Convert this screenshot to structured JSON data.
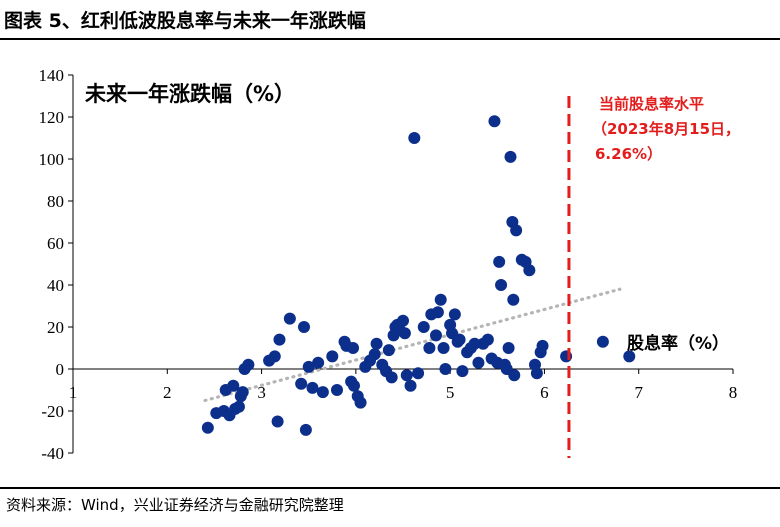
{
  "header": {
    "title": "图表 5、红利低波股息率与未来一年涨跌幅"
  },
  "footer": {
    "source": "资料来源：Wind，兴业证券经济与金融研究院整理"
  },
  "chart_data": {
    "type": "scatter",
    "ylabel": "未来一年涨跌幅（%）",
    "xlabel": "股息率（%）",
    "xlim": [
      1,
      8
    ],
    "ylim": [
      -40,
      140
    ],
    "x_ticks": [
      "1",
      "2",
      "3",
      "4",
      "5",
      "6",
      "7",
      "8"
    ],
    "y_ticks": [
      "-40",
      "-20",
      "0",
      "20",
      "40",
      "60",
      "80",
      "100",
      "120",
      "140"
    ],
    "grid": false,
    "point_color": "#0d2f8c",
    "trendline": {
      "style": "dotted",
      "color": "#b5b5b5",
      "x": [
        2.4,
        6.8
      ],
      "y": [
        -15,
        38
      ]
    },
    "reference_line": {
      "x": 6.26,
      "color": "#e31d1c",
      "style": "dashed",
      "label_lines": [
        "当前股息率水平",
        "（2023年8月15日，",
        "6.26%）"
      ]
    },
    "points": [
      [
        2.43,
        -28
      ],
      [
        2.52,
        -21
      ],
      [
        2.6,
        -20
      ],
      [
        2.62,
        -10
      ],
      [
        2.66,
        -22
      ],
      [
        2.7,
        -8
      ],
      [
        2.72,
        -19
      ],
      [
        2.76,
        -18
      ],
      [
        2.78,
        -13
      ],
      [
        2.8,
        -11
      ],
      [
        2.82,
        0
      ],
      [
        2.86,
        2
      ],
      [
        3.08,
        4
      ],
      [
        3.14,
        6
      ],
      [
        3.19,
        14
      ],
      [
        3.17,
        -25
      ],
      [
        3.3,
        24
      ],
      [
        3.42,
        -7
      ],
      [
        3.45,
        20
      ],
      [
        3.47,
        -29
      ],
      [
        3.5,
        1
      ],
      [
        3.54,
        -9
      ],
      [
        3.6,
        3
      ],
      [
        3.65,
        -11
      ],
      [
        3.75,
        6
      ],
      [
        3.8,
        -10
      ],
      [
        3.88,
        13
      ],
      [
        3.9,
        11
      ],
      [
        3.95,
        -6
      ],
      [
        3.97,
        10
      ],
      [
        3.98,
        -8
      ],
      [
        4.02,
        -13
      ],
      [
        4.05,
        -16
      ],
      [
        4.1,
        1
      ],
      [
        4.15,
        4
      ],
      [
        4.2,
        7
      ],
      [
        4.22,
        12
      ],
      [
        4.28,
        2
      ],
      [
        4.32,
        -1
      ],
      [
        4.35,
        9
      ],
      [
        4.38,
        -4
      ],
      [
        4.4,
        16
      ],
      [
        4.42,
        20
      ],
      [
        4.44,
        21
      ],
      [
        4.46,
        19
      ],
      [
        4.5,
        23
      ],
      [
        4.52,
        17
      ],
      [
        4.54,
        -3
      ],
      [
        4.58,
        -8
      ],
      [
        4.62,
        110
      ],
      [
        4.66,
        -2
      ],
      [
        4.72,
        20
      ],
      [
        4.78,
        10
      ],
      [
        4.8,
        26
      ],
      [
        4.85,
        16
      ],
      [
        4.87,
        27
      ],
      [
        4.9,
        33
      ],
      [
        4.93,
        10
      ],
      [
        4.95,
        0
      ],
      [
        5.0,
        21
      ],
      [
        5.02,
        17
      ],
      [
        5.05,
        26
      ],
      [
        5.08,
        13
      ],
      [
        5.1,
        14
      ],
      [
        5.13,
        -1
      ],
      [
        5.18,
        8
      ],
      [
        5.22,
        10
      ],
      [
        5.26,
        12
      ],
      [
        5.3,
        3
      ],
      [
        5.35,
        12
      ],
      [
        5.4,
        14
      ],
      [
        5.44,
        5
      ],
      [
        5.47,
        118
      ],
      [
        5.5,
        3
      ],
      [
        5.52,
        51
      ],
      [
        5.54,
        40
      ],
      [
        5.58,
        2
      ],
      [
        5.6,
        0
      ],
      [
        5.62,
        10
      ],
      [
        5.64,
        101
      ],
      [
        5.66,
        70
      ],
      [
        5.67,
        33
      ],
      [
        5.68,
        -3
      ],
      [
        5.7,
        66
      ],
      [
        5.76,
        52
      ],
      [
        5.8,
        51
      ],
      [
        5.84,
        47
      ],
      [
        5.9,
        2
      ],
      [
        5.92,
        -2
      ],
      [
        5.96,
        8
      ],
      [
        5.98,
        11
      ],
      [
        6.23,
        6
      ],
      [
        6.62,
        13
      ],
      [
        6.9,
        6
      ]
    ]
  }
}
